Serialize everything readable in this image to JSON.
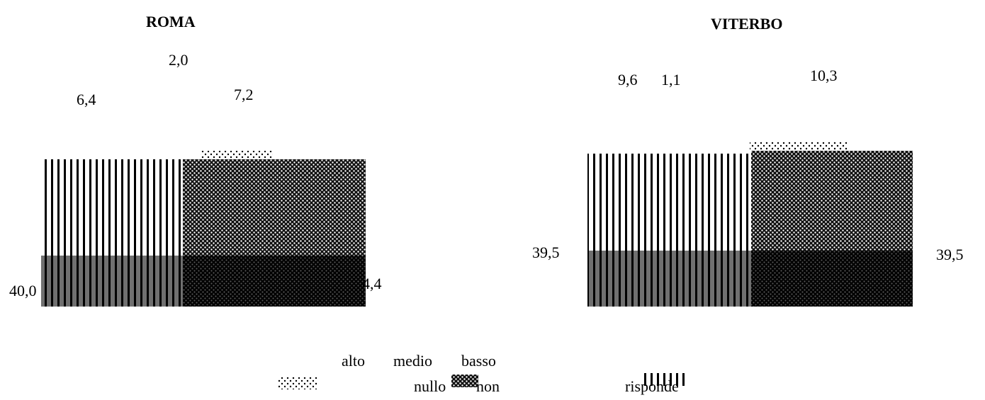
{
  "chart_data": [
    {
      "type": "pie",
      "title": "ROMA",
      "categories": [
        "alto",
        "medio",
        "basso",
        "nullo",
        "non risponde"
      ],
      "values": [
        7.2,
        44.4,
        40.0,
        6.4,
        2.0
      ],
      "value_labels": [
        "7,2",
        "44,4",
        "40,0",
        "6,4",
        "2,0"
      ],
      "patterns": [
        "dots-sparse",
        "dots-dense",
        "dots-dense-dark",
        "stripes-grey",
        "stripes"
      ]
    },
    {
      "type": "pie",
      "title": "VITERBO",
      "categories": [
        "alto",
        "medio",
        "basso",
        "nullo",
        "non risponde"
      ],
      "values": [
        10.3,
        39.5,
        39.5,
        9.6,
        1.1
      ],
      "value_labels": [
        "10,3",
        "39,5",
        "39,5",
        "9,6",
        "1,1"
      ],
      "patterns": [
        "dots-sparse",
        "dots-dense",
        "dots-dense-dark",
        "stripes-grey",
        "stripes"
      ]
    }
  ],
  "legend": {
    "row1": [
      "alto",
      "medio",
      "basso"
    ],
    "row2": [
      "nullo",
      "non",
      "risponde"
    ]
  }
}
